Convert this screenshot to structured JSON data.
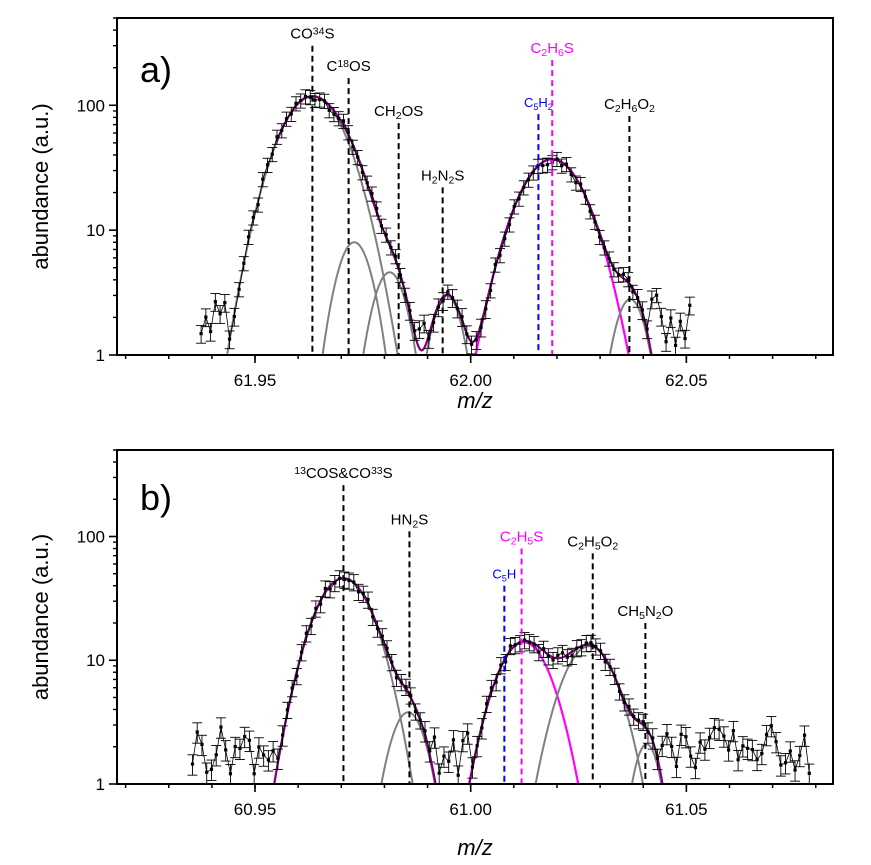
{
  "chart_data": [
    {
      "type": "line",
      "panel_label": "a)",
      "xlabel": "m/z",
      "ylabel": "abundance (a.u.)",
      "yscale": "log",
      "xlim": [
        61.918,
        62.084
      ],
      "ylim": [
        1,
        500
      ],
      "x_ticks": [
        61.95,
        62.0,
        62.05
      ],
      "x_tick_labels": [
        "61.95",
        "62.00",
        "62.05"
      ],
      "y_ticks": [
        1,
        10,
        100
      ],
      "y_tick_labels": [
        "1",
        "10",
        "100"
      ],
      "colors": {
        "data": "#000000",
        "component": "#808080",
        "sum": "#800080",
        "c2h6s": "#ff00ff",
        "c5h2": "#0000ff"
      },
      "annotations": [
        {
          "id": "co34s",
          "color": "#000000",
          "x": 61.9633,
          "y_low": 1,
          "y_high": 300,
          "parts": [
            {
              "t": "CO"
            },
            {
              "t": "34",
              "s": "sup"
            },
            {
              "t": "S"
            }
          ]
        },
        {
          "id": "c18os",
          "color": "#000000",
          "x": 61.9717,
          "y_low": 1,
          "y_high": 165,
          "parts": [
            {
              "t": "C"
            },
            {
              "t": "18",
              "s": "sup"
            },
            {
              "t": "OS"
            }
          ]
        },
        {
          "id": "ch2os",
          "color": "#000000",
          "x": 61.9833,
          "y_low": 1,
          "y_high": 72,
          "parts": [
            {
              "t": "CH"
            },
            {
              "t": "2",
              "s": "sub"
            },
            {
              "t": "OS"
            }
          ]
        },
        {
          "id": "h2n2s",
          "color": "#000000",
          "x": 61.9935,
          "y_low": 1,
          "y_high": 22,
          "parts": [
            {
              "t": "H"
            },
            {
              "t": "2",
              "s": "sub"
            },
            {
              "t": "N"
            },
            {
              "t": "2",
              "s": "sub"
            },
            {
              "t": "S"
            }
          ]
        },
        {
          "id": "c5h2",
          "color": "#0000ff",
          "x": 62.0157,
          "y_low": 1,
          "y_high": 85,
          "small": true,
          "parts": [
            {
              "t": "C"
            },
            {
              "t": "5",
              "s": "sub"
            },
            {
              "t": "H"
            },
            {
              "t": "2",
              "s": "sub"
            }
          ]
        },
        {
          "id": "c2h6s",
          "color": "#ff00ff",
          "x": 62.0189,
          "y_low": 1,
          "y_high": 230,
          "parts": [
            {
              "t": "C"
            },
            {
              "t": "2",
              "s": "sub"
            },
            {
              "t": "H"
            },
            {
              "t": "6",
              "s": "sub"
            },
            {
              "t": "S"
            }
          ]
        },
        {
          "id": "c2h6o2",
          "color": "#000000",
          "x": 62.0368,
          "y_low": 1,
          "y_high": 82,
          "parts": [
            {
              "t": "C"
            },
            {
              "t": "2",
              "s": "sub"
            },
            {
              "t": "H"
            },
            {
              "t": "6",
              "s": "sub"
            },
            {
              "t": "O"
            },
            {
              "t": "2",
              "s": "sub"
            }
          ]
        }
      ],
      "components": [
        {
          "name": "CO34S",
          "color": "#808080",
          "center": 61.9633,
          "amp": 118,
          "sigma": 0.0064
        },
        {
          "name": "C18OS",
          "color": "#808080",
          "center": 61.973,
          "amp": 8,
          "sigma": 0.0036
        },
        {
          "name": "CH2OS",
          "color": "#808080",
          "center": 61.9812,
          "amp": 4.6,
          "sigma": 0.0035
        },
        {
          "name": "H2N2S",
          "color": "#808080",
          "center": 61.9945,
          "amp": 3.0,
          "sigma": 0.0032
        },
        {
          "name": "C2H6S",
          "color": "#ff00ff",
          "center": 62.0189,
          "amp": 37,
          "sigma": 0.0066
        },
        {
          "name": "C2H6O2",
          "color": "#808080",
          "center": 62.037,
          "amp": 2.8,
          "sigma": 0.0033
        }
      ],
      "sum_range": [
        61.955,
        62.042
      ],
      "data_range": [
        61.9375,
        62.0515
      ],
      "data_step": 0.0011,
      "error_fraction": 0.13
    },
    {
      "type": "line",
      "panel_label": "b)",
      "xlabel": "m/z",
      "ylabel": "abundance (a.u.)",
      "yscale": "log",
      "xlim": [
        60.918,
        61.084
      ],
      "ylim": [
        1,
        500
      ],
      "x_ticks": [
        60.95,
        61.0,
        61.05
      ],
      "x_tick_labels": [
        "60.95",
        "61.00",
        "61.05"
      ],
      "y_ticks": [
        1,
        10,
        100
      ],
      "y_tick_labels": [
        "1",
        "10",
        "100"
      ],
      "colors": {
        "data": "#000000",
        "component": "#808080",
        "sum": "#800080",
        "c2h5s": "#ff00ff",
        "c5h": "#0000ff"
      },
      "annotations": [
        {
          "id": "13cos-co33s",
          "color": "#000000",
          "x": 60.9705,
          "y_low": 1,
          "y_high": 260,
          "parts": [
            {
              "t": "13",
              "s": "sup"
            },
            {
              "t": "COS&CO"
            },
            {
              "t": "33",
              "s": "sup"
            },
            {
              "t": "S"
            }
          ]
        },
        {
          "id": "hn2s",
          "color": "#000000",
          "x": 60.9858,
          "y_low": 1,
          "y_high": 110,
          "parts": [
            {
              "t": "HN"
            },
            {
              "t": "2",
              "s": "sub"
            },
            {
              "t": "S"
            }
          ]
        },
        {
          "id": "c5h",
          "color": "#0000ff",
          "x": 61.0078,
          "y_low": 1,
          "y_high": 40,
          "small": true,
          "parts": [
            {
              "t": "C"
            },
            {
              "t": "5",
              "s": "sub"
            },
            {
              "t": "H"
            }
          ]
        },
        {
          "id": "c2h5s",
          "color": "#ff00ff",
          "x": 61.0118,
          "y_low": 1,
          "y_high": 80,
          "parts": [
            {
              "t": "C"
            },
            {
              "t": "2",
              "s": "sub"
            },
            {
              "t": "H"
            },
            {
              "t": "5",
              "s": "sub"
            },
            {
              "t": "S"
            }
          ]
        },
        {
          "id": "c2h5o2",
          "color": "#000000",
          "x": 61.0283,
          "y_low": 1,
          "y_high": 73,
          "parts": [
            {
              "t": "C"
            },
            {
              "t": "2",
              "s": "sub"
            },
            {
              "t": "H"
            },
            {
              "t": "5",
              "s": "sub"
            },
            {
              "t": "O"
            },
            {
              "t": "2",
              "s": "sub"
            }
          ]
        },
        {
          "id": "ch5n2o",
          "color": "#000000",
          "x": 61.0405,
          "y_low": 1,
          "y_high": 20,
          "parts": [
            {
              "t": "CH"
            },
            {
              "t": "5",
              "s": "sub"
            },
            {
              "t": "N"
            },
            {
              "t": "2",
              "s": "sub"
            },
            {
              "t": "O"
            }
          ]
        }
      ],
      "components": [
        {
          "name": "13COS+CO33S",
          "color": "#808080",
          "center": 60.9705,
          "amp": 46,
          "sigma": 0.0058
        },
        {
          "name": "HN2S",
          "color": "#808080",
          "center": 60.9855,
          "amp": 3.8,
          "sigma": 0.0038
        },
        {
          "name": "C2H5S",
          "color": "#ff00ff",
          "center": 61.0123,
          "amp": 14,
          "sigma": 0.0055
        },
        {
          "name": "C2H5O2",
          "color": "#808080",
          "center": 61.0275,
          "amp": 13,
          "sigma": 0.0055
        },
        {
          "name": "CH5N2O",
          "color": "#808080",
          "center": 61.0408,
          "amp": 2.1,
          "sigma": 0.0028
        }
      ],
      "sum_range": [
        60.953,
        61.047
      ],
      "data_range": [
        60.9355,
        61.0795
      ],
      "data_step": 0.0011,
      "error_fraction": 0.15
    }
  ]
}
